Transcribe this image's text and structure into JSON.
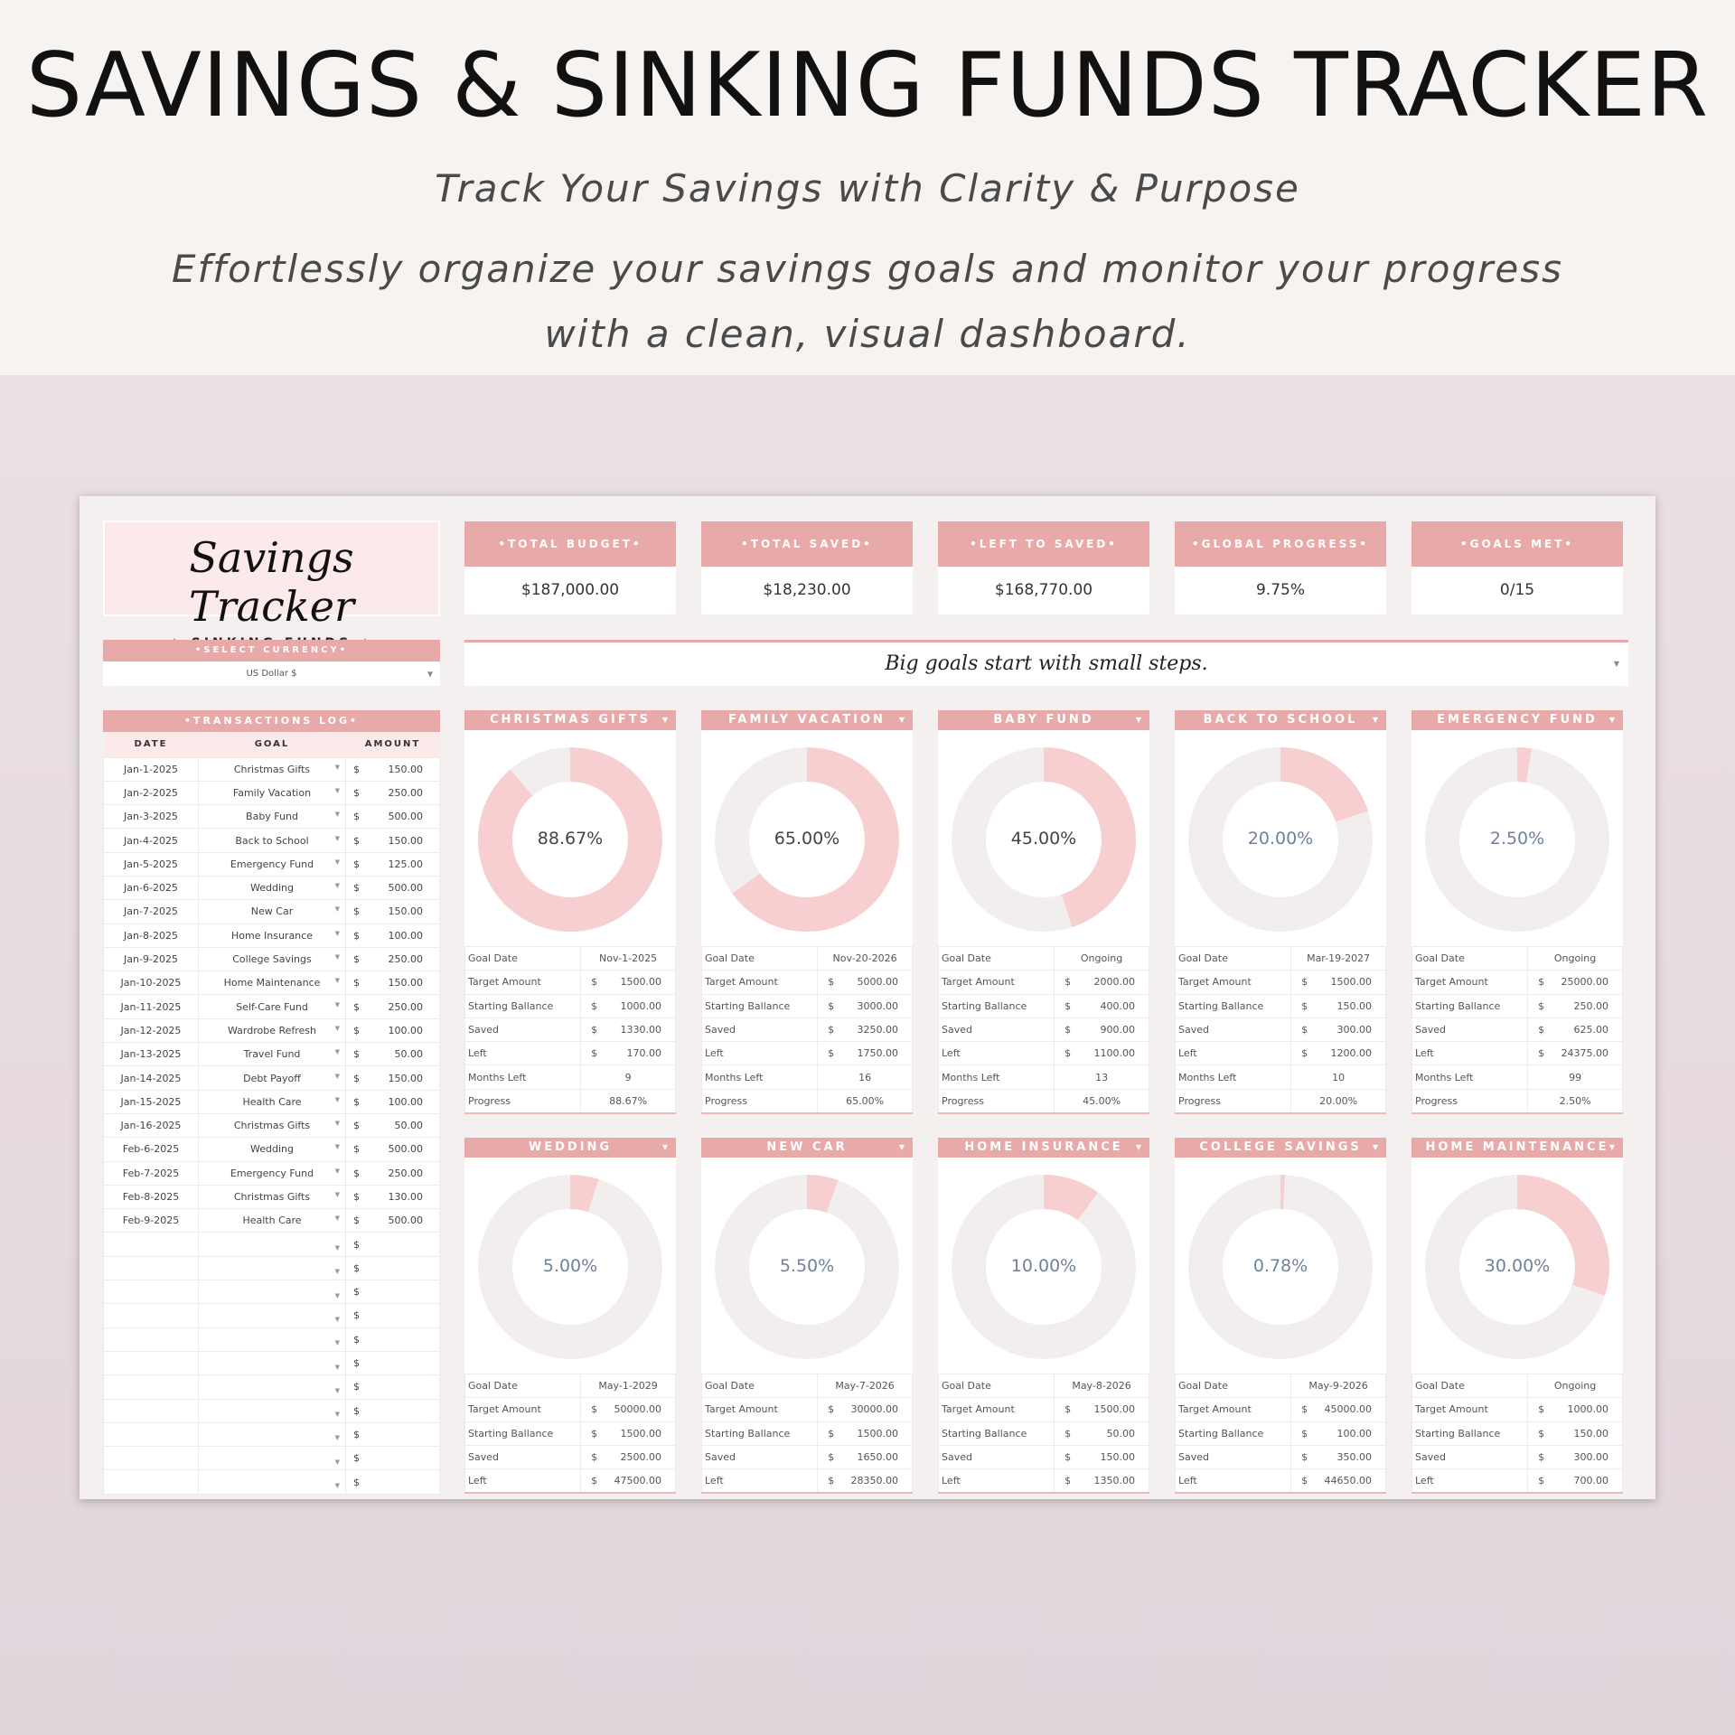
{
  "hero": {
    "title": "SAVINGS & SINKING FUNDS TRACKER",
    "subtitle": "Track Your Savings with Clarity & Purpose",
    "description": "Effortlessly organize your savings goals and monitor your progress with a clean, visual dashboard."
  },
  "logo": {
    "title": "Savings Tracker",
    "subtitle": "✧ SINKING FUNDS ✧"
  },
  "currency": {
    "label": "•SELECT CURRENCY•",
    "value": "US Dollar $"
  },
  "transactions": {
    "title": "•TRANSACTIONS LOG•",
    "headers": [
      "DATE",
      "GOAL",
      "AMOUNT"
    ],
    "currency_symbol": "$",
    "rows": [
      [
        "Jan-1-2025",
        "Christmas Gifts",
        "150.00"
      ],
      [
        "Jan-2-2025",
        "Family Vacation",
        "250.00"
      ],
      [
        "Jan-3-2025",
        "Baby Fund",
        "500.00"
      ],
      [
        "Jan-4-2025",
        "Back to School",
        "150.00"
      ],
      [
        "Jan-5-2025",
        "Emergency Fund",
        "125.00"
      ],
      [
        "Jan-6-2025",
        "Wedding",
        "500.00"
      ],
      [
        "Jan-7-2025",
        "New Car",
        "150.00"
      ],
      [
        "Jan-8-2025",
        "Home Insurance",
        "100.00"
      ],
      [
        "Jan-9-2025",
        "College Savings",
        "250.00"
      ],
      [
        "Jan-10-2025",
        "Home Maintenance",
        "150.00"
      ],
      [
        "Jan-11-2025",
        "Self-Care Fund",
        "250.00"
      ],
      [
        "Jan-12-2025",
        "Wardrobe Refresh",
        "100.00"
      ],
      [
        "Jan-13-2025",
        "Travel Fund",
        "50.00"
      ],
      [
        "Jan-14-2025",
        "Debt Payoff",
        "150.00"
      ],
      [
        "Jan-15-2025",
        "Health Care",
        "100.00"
      ],
      [
        "Jan-16-2025",
        "Christmas Gifts",
        "50.00"
      ],
      [
        "Feb-6-2025",
        "Wedding",
        "500.00"
      ],
      [
        "Feb-7-2025",
        "Emergency Fund",
        "250.00"
      ],
      [
        "Feb-8-2025",
        "Christmas Gifts",
        "130.00"
      ],
      [
        "Feb-9-2025",
        "Health Care",
        "500.00"
      ]
    ],
    "empty_rows": 11
  },
  "kpis": [
    {
      "label": "•TOTAL BUDGET•",
      "value": "$187,000.00"
    },
    {
      "label": "•TOTAL SAVED•",
      "value": "$18,230.00"
    },
    {
      "label": "•LEFT TO SAVED•",
      "value": "$168,770.00"
    },
    {
      "label": "•GLOBAL PROGRESS•",
      "value": "9.75%"
    },
    {
      "label": "•GOALS MET•",
      "value": "0/15"
    }
  ],
  "quote": "Big goals start with small steps.",
  "colors": {
    "header": "#e8a9a9",
    "donut_fill": "#f7cfd0",
    "donut_track": "#f3eeee"
  },
  "goal_labels": {
    "goal_date": "Goal Date",
    "target": "Target Amount",
    "starting": "Starting Ballance",
    "saved": "Saved",
    "left": "Left",
    "months": "Months Left",
    "progress": "Progress"
  },
  "goals": [
    {
      "name": "CHRISTMAS GIFTS",
      "progress": 88.67,
      "progress_label": "88.67%",
      "goal_date": "Nov-1-2025",
      "target": "1500.00",
      "starting": "1000.00",
      "saved": "1330.00",
      "left": "170.00",
      "months": "9"
    },
    {
      "name": "FAMILY VACATION",
      "progress": 65,
      "progress_label": "65.00%",
      "goal_date": "Nov-20-2026",
      "target": "5000.00",
      "starting": "3000.00",
      "saved": "3250.00",
      "left": "1750.00",
      "months": "16"
    },
    {
      "name": "BABY FUND",
      "progress": 45,
      "progress_label": "45.00%",
      "goal_date": "Ongoing",
      "target": "2000.00",
      "starting": "400.00",
      "saved": "900.00",
      "left": "1100.00",
      "months": "13"
    },
    {
      "name": "BACK TO SCHOOL",
      "progress": 20,
      "progress_label": "20.00%",
      "goal_date": "Mar-19-2027",
      "target": "1500.00",
      "starting": "150.00",
      "saved": "300.00",
      "left": "1200.00",
      "months": "10"
    },
    {
      "name": "EMERGENCY FUND",
      "progress": 2.5,
      "progress_label": "2.50%",
      "goal_date": "Ongoing",
      "target": "25000.00",
      "starting": "250.00",
      "saved": "625.00",
      "left": "24375.00",
      "months": "99"
    },
    {
      "name": "WEDDING",
      "progress": 5,
      "progress_label": "5.00%",
      "goal_date": "May-1-2029",
      "target": "50000.00",
      "starting": "1500.00",
      "saved": "2500.00",
      "left": "47500.00"
    },
    {
      "name": "NEW CAR",
      "progress": 5.5,
      "progress_label": "5.50%",
      "goal_date": "May-7-2026",
      "target": "30000.00",
      "starting": "1500.00",
      "saved": "1650.00",
      "left": "28350.00"
    },
    {
      "name": "HOME INSURANCE",
      "progress": 10,
      "progress_label": "10.00%",
      "goal_date": "May-8-2026",
      "target": "1500.00",
      "starting": "50.00",
      "saved": "150.00",
      "left": "1350.00"
    },
    {
      "name": "COLLEGE SAVINGS",
      "progress": 0.78,
      "progress_label": "0.78%",
      "goal_date": "May-9-2026",
      "target": "45000.00",
      "starting": "100.00",
      "saved": "350.00",
      "left": "44650.00"
    },
    {
      "name": "HOME MAINTENANCE",
      "progress": 30,
      "progress_label": "30.00%",
      "goal_date": "Ongoing",
      "target": "1000.00",
      "starting": "150.00",
      "saved": "300.00",
      "left": "700.00"
    }
  ]
}
